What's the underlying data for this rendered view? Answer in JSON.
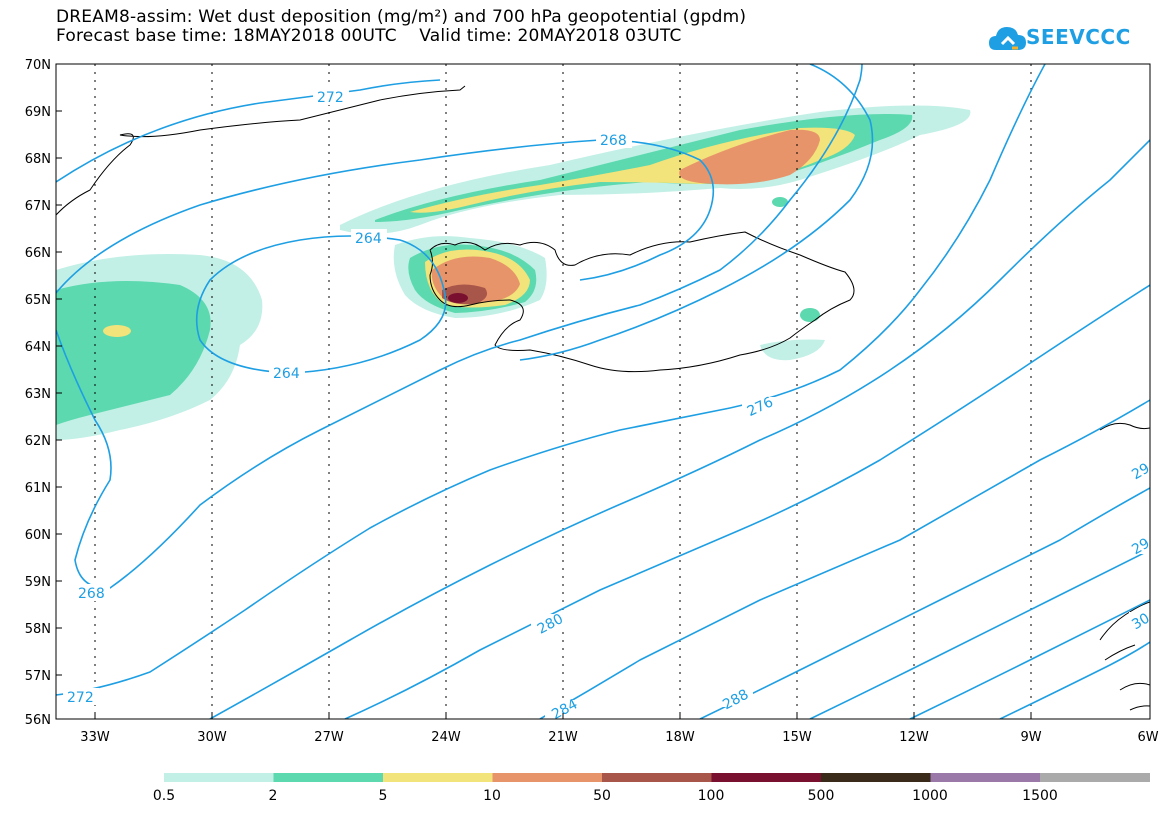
{
  "title": {
    "line1": "DREAM8-assim: Wet dust deposition (mg/m²) and 700 hPa geopotential (gpdm)",
    "line2": "Forecast base time: 18MAY2018 00UTC    Valid time: 20MAY2018 03UTC"
  },
  "logo": {
    "text": "SEEVCCC",
    "icon": "cloud-icon",
    "color": "#1e9fe3"
  },
  "map": {
    "lat_labels": [
      "70N",
      "69N",
      "68N",
      "67N",
      "66N",
      "65N",
      "64N",
      "63N",
      "62N",
      "61N",
      "60N",
      "59N",
      "58N",
      "57N",
      "56N"
    ],
    "lon_labels": [
      "33W",
      "30W",
      "27W",
      "24W",
      "21W",
      "18W",
      "15W",
      "12W",
      "9W",
      "6W"
    ],
    "contour_color": "#1e9fe3",
    "contour_labels": [
      "272",
      "268",
      "264",
      "264",
      "268",
      "272",
      "276",
      "280",
      "284",
      "288",
      "29",
      "29",
      "30"
    ]
  },
  "legend": {
    "labels": [
      "0.5",
      "2",
      "5",
      "10",
      "50",
      "100",
      "500",
      "1000",
      "1500"
    ],
    "colors": [
      "#c2f0e6",
      "#5cd9ae",
      "#f2e37a",
      "#e8946a",
      "#a8554a",
      "#7a1030",
      "#3a2a1a",
      "#9a78a8",
      "#aaaaaa"
    ]
  }
}
